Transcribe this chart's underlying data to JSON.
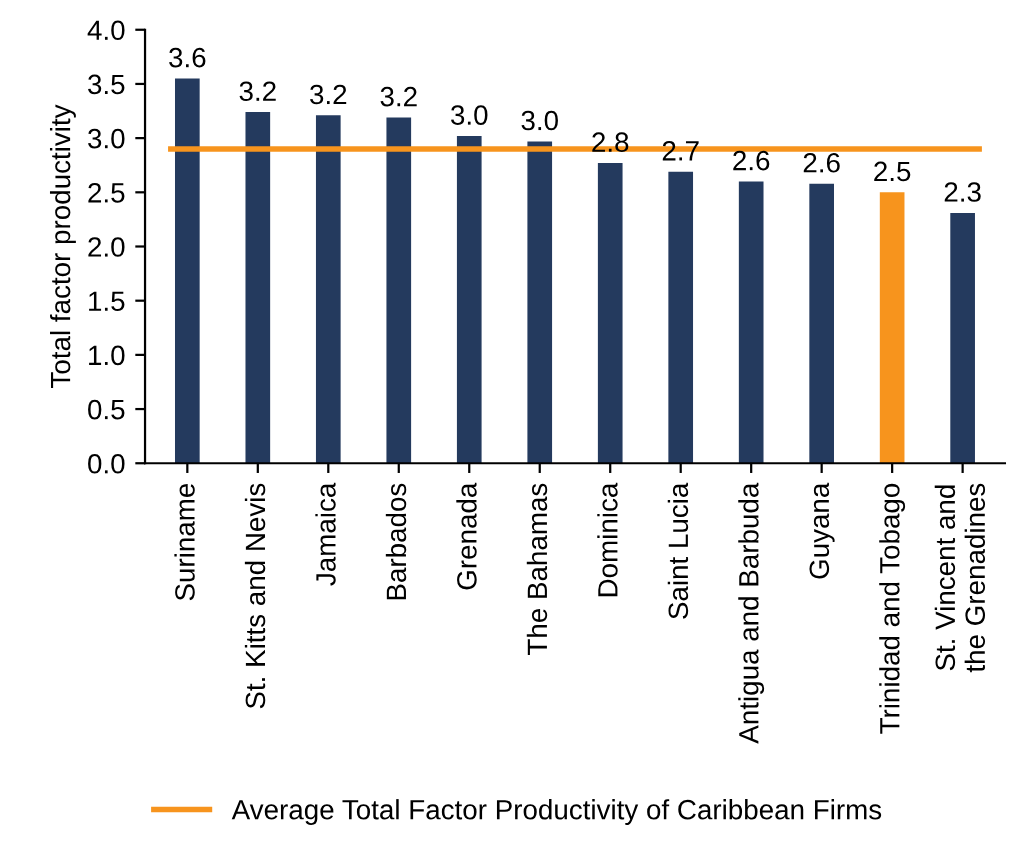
{
  "chart_data": {
    "type": "bar",
    "ylabel": "Total factor productivity",
    "categories": [
      "Suriname",
      "St. Kitts and Nevis",
      "Jamaica",
      "Barbados",
      "Grenada",
      "The Bahamas",
      "Dominica",
      "Saint Lucia",
      "Antigua and Barbuda",
      "Guyana",
      "Trinidad and Tobago",
      "St. Vincent and\nthe Grenadines"
    ],
    "values": [
      3.55,
      3.24,
      3.21,
      3.19,
      3.02,
      2.97,
      2.77,
      2.69,
      2.6,
      2.58,
      2.5,
      2.31
    ],
    "value_labels": [
      "3.6",
      "3.2",
      "3.2",
      "3.2",
      "3.0",
      "3.0",
      "2.8",
      "2.7",
      "2.6",
      "2.6",
      "2.5",
      "2.3"
    ],
    "colors": [
      "#243a5e",
      "#243a5e",
      "#243a5e",
      "#243a5e",
      "#243a5e",
      "#243a5e",
      "#243a5e",
      "#243a5e",
      "#243a5e",
      "#243a5e",
      "#f7941d",
      "#243a5e"
    ],
    "ylim": [
      0,
      4
    ],
    "yticks": [
      {
        "value": 0,
        "label": "0.0"
      },
      {
        "value": 0.5,
        "label": "0.5"
      },
      {
        "value": 1,
        "label": "1.0"
      },
      {
        "value": 1.5,
        "label": "1.5"
      },
      {
        "value": 2,
        "label": "2.0"
      },
      {
        "value": 2.5,
        "label": "2.5"
      },
      {
        "value": 3,
        "label": "3.0"
      },
      {
        "value": 3.5,
        "label": "3.5"
      },
      {
        "value": 4,
        "label": "4.0"
      }
    ],
    "ref_lines": [
      {
        "axis": "y",
        "value": 2.9,
        "label": "Average Total Factor Productivity of Caribbean Firms",
        "color": "#f7941d",
        "line_style": "solid"
      }
    ],
    "grid": false,
    "legend": "bottom"
  }
}
